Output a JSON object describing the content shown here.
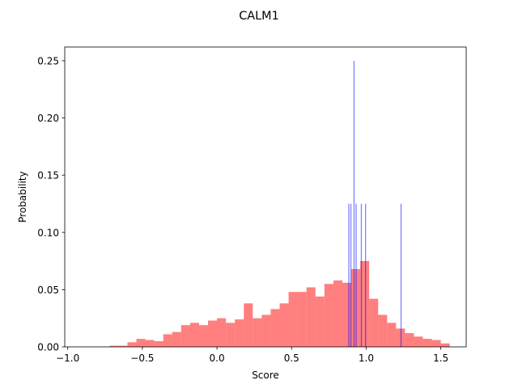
{
  "chart_data": {
    "type": "bar",
    "title": "CALM1",
    "xlabel": "Score",
    "ylabel": "Probability",
    "xlim": [
      -1.02,
      1.67
    ],
    "ylim": [
      0.0,
      0.262
    ],
    "xticks": [
      -1.0,
      -0.5,
      0.0,
      0.5,
      1.0,
      1.5
    ],
    "xtick_labels": [
      "−1.0",
      "−0.5",
      "0.0",
      "0.5",
      "1.0",
      "1.5"
    ],
    "yticks": [
      0.0,
      0.05,
      0.1,
      0.15,
      0.2,
      0.25
    ],
    "ytick_labels": [
      "0.00",
      "0.05",
      "0.10",
      "0.15",
      "0.20",
      "0.25"
    ],
    "grid": false,
    "legend": "none",
    "series": [
      {
        "color": "#ff0000",
        "opacity": 0.5,
        "bins": [
          {
            "x0": -0.72,
            "x1": -0.66,
            "y": 0.001
          },
          {
            "x0": -0.66,
            "x1": -0.6,
            "y": 0.001
          },
          {
            "x0": -0.6,
            "x1": -0.54,
            "y": 0.004
          },
          {
            "x0": -0.54,
            "x1": -0.48,
            "y": 0.007
          },
          {
            "x0": -0.48,
            "x1": -0.42,
            "y": 0.006
          },
          {
            "x0": -0.42,
            "x1": -0.36,
            "y": 0.005
          },
          {
            "x0": -0.36,
            "x1": -0.3,
            "y": 0.011
          },
          {
            "x0": -0.3,
            "x1": -0.24,
            "y": 0.013
          },
          {
            "x0": -0.24,
            "x1": -0.18,
            "y": 0.019
          },
          {
            "x0": -0.18,
            "x1": -0.12,
            "y": 0.021
          },
          {
            "x0": -0.12,
            "x1": -0.06,
            "y": 0.019
          },
          {
            "x0": -0.06,
            "x1": 0.0,
            "y": 0.023
          },
          {
            "x0": 0.0,
            "x1": 0.06,
            "y": 0.025
          },
          {
            "x0": 0.06,
            "x1": 0.12,
            "y": 0.021
          },
          {
            "x0": 0.12,
            "x1": 0.18,
            "y": 0.024
          },
          {
            "x0": 0.18,
            "x1": 0.24,
            "y": 0.038
          },
          {
            "x0": 0.24,
            "x1": 0.3,
            "y": 0.025
          },
          {
            "x0": 0.3,
            "x1": 0.36,
            "y": 0.028
          },
          {
            "x0": 0.36,
            "x1": 0.42,
            "y": 0.033
          },
          {
            "x0": 0.42,
            "x1": 0.48,
            "y": 0.038
          },
          {
            "x0": 0.48,
            "x1": 0.54,
            "y": 0.048
          },
          {
            "x0": 0.54,
            "x1": 0.6,
            "y": 0.048
          },
          {
            "x0": 0.6,
            "x1": 0.66,
            "y": 0.052
          },
          {
            "x0": 0.66,
            "x1": 0.72,
            "y": 0.044
          },
          {
            "x0": 0.72,
            "x1": 0.78,
            "y": 0.055
          },
          {
            "x0": 0.78,
            "x1": 0.84,
            "y": 0.058
          },
          {
            "x0": 0.84,
            "x1": 0.9,
            "y": 0.056
          },
          {
            "x0": 0.9,
            "x1": 0.96,
            "y": 0.068
          },
          {
            "x0": 0.96,
            "x1": 1.02,
            "y": 0.075
          },
          {
            "x0": 1.02,
            "x1": 1.08,
            "y": 0.042
          },
          {
            "x0": 1.08,
            "x1": 1.14,
            "y": 0.028
          },
          {
            "x0": 1.14,
            "x1": 1.2,
            "y": 0.021
          },
          {
            "x0": 1.2,
            "x1": 1.26,
            "y": 0.016
          },
          {
            "x0": 1.26,
            "x1": 1.32,
            "y": 0.012
          },
          {
            "x0": 1.32,
            "x1": 1.38,
            "y": 0.009
          },
          {
            "x0": 1.38,
            "x1": 1.44,
            "y": 0.007
          },
          {
            "x0": 1.44,
            "x1": 1.5,
            "y": 0.006
          },
          {
            "x0": 1.5,
            "x1": 1.56,
            "y": 0.003
          }
        ]
      },
      {
        "color": "#0000ff",
        "opacity": 0.5,
        "bins": [
          {
            "x0": 0.88,
            "x1": 0.887,
            "y": 0.125
          },
          {
            "x0": 0.894,
            "x1": 0.901,
            "y": 0.125
          },
          {
            "x0": 0.915,
            "x1": 0.922,
            "y": 0.25
          },
          {
            "x0": 0.929,
            "x1": 0.936,
            "y": 0.125
          },
          {
            "x0": 0.964,
            "x1": 0.971,
            "y": 0.125
          },
          {
            "x0": 0.992,
            "x1": 0.999,
            "y": 0.125
          },
          {
            "x0": 1.23,
            "x1": 1.237,
            "y": 0.125
          }
        ]
      }
    ]
  }
}
